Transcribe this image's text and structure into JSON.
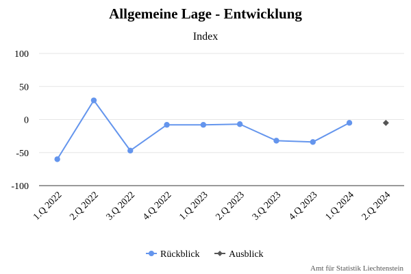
{
  "chart_data": {
    "type": "line",
    "title": "Allgemeine Lage - Entwicklung",
    "subtitle": "Index",
    "categories": [
      "1.Q 2022",
      "2.Q 2022",
      "3.Q 2022",
      "4.Q 2022",
      "1.Q 2023",
      "2.Q 2023",
      "3.Q 2023",
      "4.Q 2023",
      "1.Q 2024",
      "2.Q 2024"
    ],
    "ylim": [
      -100,
      100
    ],
    "yticks": [
      100,
      50,
      0,
      -50,
      -100
    ],
    "grid": true,
    "legend_position": "bottom-center",
    "series": [
      {
        "name": "Rückblick",
        "color": "#6495ED",
        "marker": "circle",
        "line": true,
        "values": [
          -60,
          29,
          -47,
          -8,
          -8,
          -7,
          -32,
          -34,
          -5,
          null
        ]
      },
      {
        "name": "Ausblick",
        "color": "#555555",
        "marker": "diamond",
        "line": false,
        "values": [
          null,
          null,
          null,
          null,
          null,
          null,
          null,
          null,
          null,
          -5
        ]
      }
    ],
    "credit": "Amt für Statistik Liechtenstein"
  }
}
